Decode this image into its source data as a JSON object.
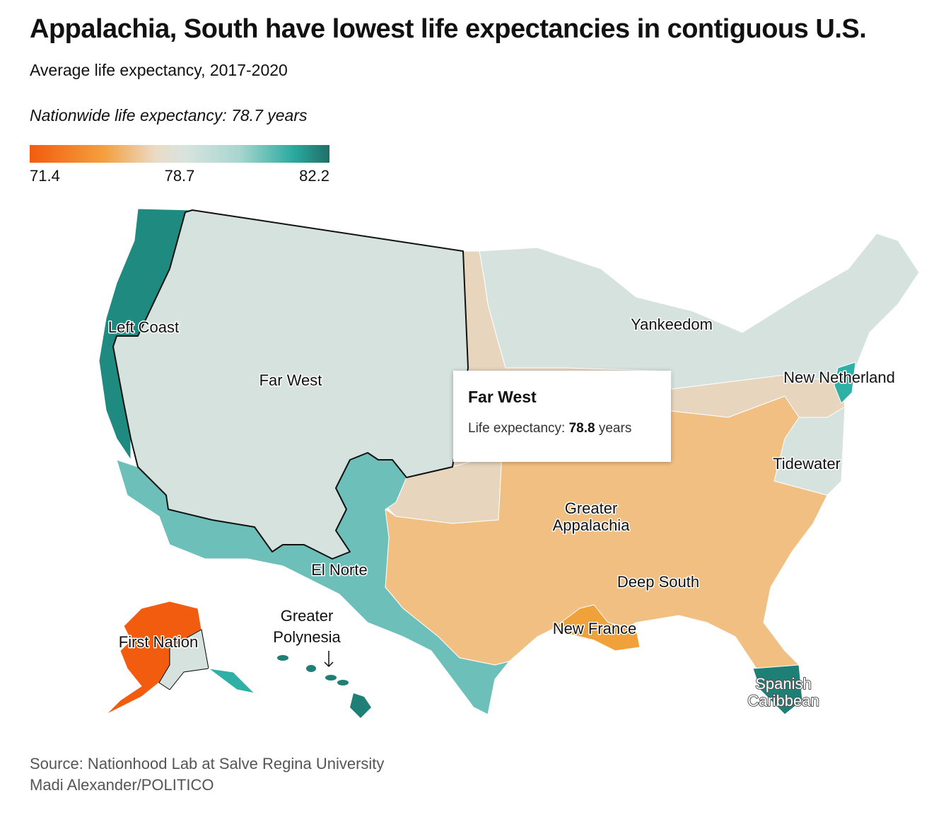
{
  "header": {
    "title": "Appalachia, South have lowest life expectancies in contiguous U.S.",
    "subtitle": "Average life expectancy, 2017-2020",
    "note": "Nationwide life expectancy: 78.7 years"
  },
  "legend": {
    "ticks": [
      71.4,
      78.7,
      82.2
    ]
  },
  "regions": [
    {
      "label": [
        "Left Coast"
      ]
    },
    {
      "label": [
        "Far West"
      ]
    },
    {
      "label": [
        "Yankeedom"
      ]
    },
    {
      "label": [
        "New Netherland"
      ]
    },
    {
      "label": [
        "Tidewater"
      ]
    },
    {
      "label": [
        "Greater",
        "Appalachia"
      ]
    },
    {
      "label": [
        "El Norte"
      ]
    },
    {
      "label": [
        "Deep South"
      ]
    },
    {
      "label": [
        "New France"
      ]
    },
    {
      "label": [
        "First Nation"
      ]
    },
    {
      "label": [
        "Greater",
        "Polynesia"
      ]
    },
    {
      "label": [
        "Spanish",
        "Caribbean"
      ]
    }
  ],
  "tooltip": {
    "title": "Far West",
    "label": "Life expectancy:",
    "value": 78.8,
    "unit": "years"
  },
  "footer": {
    "source": "Source: Nationhood Lab at Salve Regina University",
    "credit": "Madi Alexander/POLITICO"
  }
}
